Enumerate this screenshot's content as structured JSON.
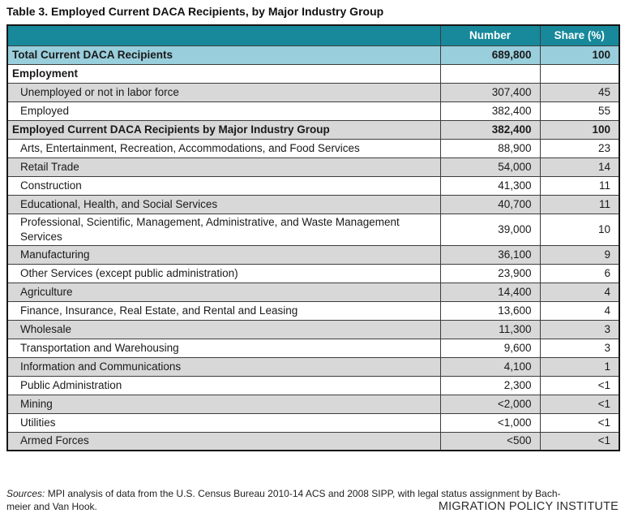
{
  "page": {
    "title": "Table 3. Employed Current DACA Recipients, by Major Industry Group"
  },
  "table": {
    "header": {
      "number": "Number",
      "share": "Share (%)"
    },
    "rows": [
      {
        "label": "Total Current DACA Recipients",
        "number": "689,800",
        "share": "100",
        "bold": true,
        "indent": false,
        "bg": "blue"
      },
      {
        "label": "Employment",
        "number": "",
        "share": "",
        "bold": true,
        "indent": false,
        "bg": "white"
      },
      {
        "label": "Unemployed or not in labor force",
        "number": "307,400",
        "share": "45",
        "bold": false,
        "indent": true,
        "bg": "gray"
      },
      {
        "label": "Employed",
        "number": "382,400",
        "share": "55",
        "bold": false,
        "indent": true,
        "bg": "white"
      },
      {
        "label": "Employed Current DACA Recipients by Major Industry Group",
        "number": "382,400",
        "share": "100",
        "bold": true,
        "indent": false,
        "bg": "gray"
      },
      {
        "label": "Arts, Entertainment, Recreation, Accommodations, and Food Services",
        "number": "88,900",
        "share": "23",
        "bold": false,
        "indent": true,
        "bg": "white"
      },
      {
        "label": "Retail Trade",
        "number": "54,000",
        "share": "14",
        "bold": false,
        "indent": true,
        "bg": "gray"
      },
      {
        "label": "Construction",
        "number": "41,300",
        "share": "11",
        "bold": false,
        "indent": true,
        "bg": "white"
      },
      {
        "label": "Educational, Health, and Social Services",
        "number": "40,700",
        "share": "11",
        "bold": false,
        "indent": true,
        "bg": "gray"
      },
      {
        "label": "Professional, Scientific, Management, Administrative, and Waste Management Services",
        "number": "39,000",
        "share": "10",
        "bold": false,
        "indent": true,
        "bg": "white"
      },
      {
        "label": "Manufacturing",
        "number": "36,100",
        "share": "9",
        "bold": false,
        "indent": true,
        "bg": "gray"
      },
      {
        "label": "Other Services (except public administration)",
        "number": "23,900",
        "share": "6",
        "bold": false,
        "indent": true,
        "bg": "white"
      },
      {
        "label": "Agriculture",
        "number": "14,400",
        "share": "4",
        "bold": false,
        "indent": true,
        "bg": "gray"
      },
      {
        "label": "Finance, Insurance, Real Estate, and Rental and Leasing",
        "number": "13,600",
        "share": "4",
        "bold": false,
        "indent": true,
        "bg": "white"
      },
      {
        "label": "Wholesale",
        "number": "11,300",
        "share": "3",
        "bold": false,
        "indent": true,
        "bg": "gray"
      },
      {
        "label": "Transportation and Warehousing",
        "number": "9,600",
        "share": "3",
        "bold": false,
        "indent": true,
        "bg": "white"
      },
      {
        "label": "Information and Communications",
        "number": "4,100",
        "share": "1",
        "bold": false,
        "indent": true,
        "bg": "gray"
      },
      {
        "label": "Public Administration",
        "number": "2,300",
        "share": "<1",
        "bold": false,
        "indent": true,
        "bg": "white"
      },
      {
        "label": "Mining",
        "number": "<2,000",
        "share": "<1",
        "bold": false,
        "indent": true,
        "bg": "gray"
      },
      {
        "label": "Utilities",
        "number": "<1,000",
        "share": "<1",
        "bold": false,
        "indent": true,
        "bg": "white"
      },
      {
        "label": "Armed Forces",
        "number": "<500",
        "share": "<1",
        "bold": false,
        "indent": true,
        "bg": "gray"
      }
    ]
  },
  "footer": {
    "sources_label": "Sources:",
    "sources_line1_rest": " MPI analysis of data from the U.S. Census Bureau 2010-14 ACS and 2008 SIPP, with legal status assignment by Bach-",
    "sources_line2": "meier and Van Hook.",
    "brand": "MIGRATION POLICY INSTITUTE"
  },
  "colors": {
    "header_teal": "#17899B",
    "total_row_blue": "#99CEDC",
    "alt_row_gray": "#D8D8D8",
    "border_inner": "#3D3D3D",
    "border_outer": "#151515"
  }
}
